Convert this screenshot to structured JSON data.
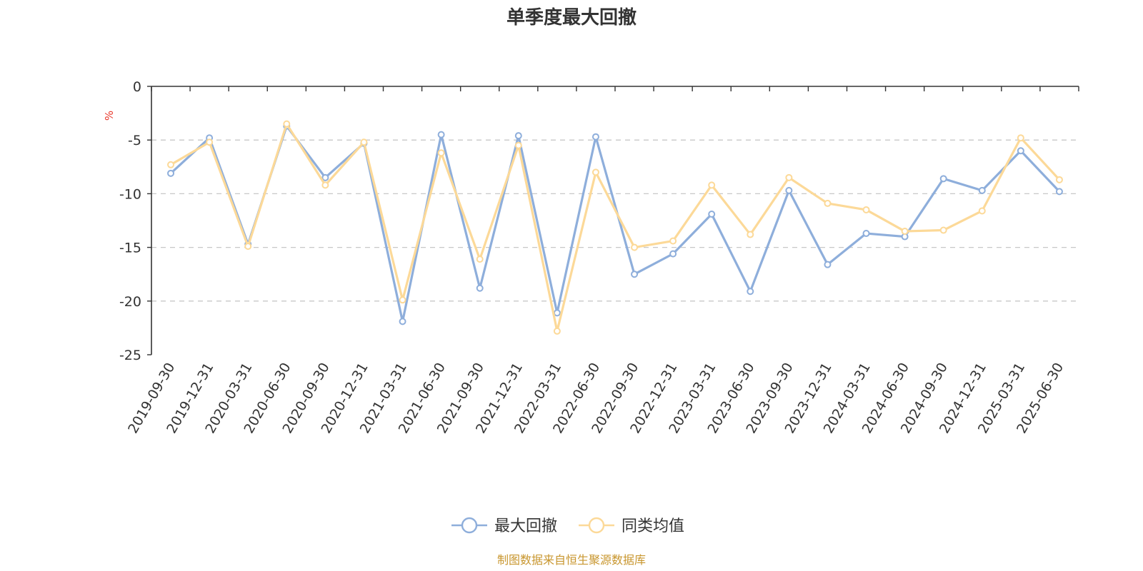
{
  "chart_data": {
    "type": "line",
    "title": "单季度最大回撤",
    "ylabel": "%",
    "ylim": [
      -25,
      0
    ],
    "yticks": [
      0,
      -5,
      -10,
      -15,
      -20,
      -25
    ],
    "grid": true,
    "legend_position": "bottom",
    "source": "制图数据来自恒生聚源数据库",
    "categories": [
      "2019-09-30",
      "2019-12-31",
      "2020-03-31",
      "2020-06-30",
      "2020-09-30",
      "2020-12-31",
      "2021-03-31",
      "2021-06-30",
      "2021-09-30",
      "2021-12-31",
      "2022-03-31",
      "2022-06-30",
      "2022-09-30",
      "2022-12-31",
      "2023-03-31",
      "2023-06-30",
      "2023-09-30",
      "2023-12-31",
      "2024-03-31",
      "2024-06-30",
      "2024-09-30",
      "2024-12-31",
      "2025-03-31",
      "2025-06-30"
    ],
    "series": [
      {
        "name": "最大回撤",
        "color": "#8eaedb",
        "values": [
          -8.1,
          -4.8,
          -14.7,
          -3.7,
          -8.5,
          -5.3,
          -21.9,
          -4.5,
          -18.8,
          -4.6,
          -21.1,
          -4.7,
          -17.5,
          -15.6,
          -11.9,
          -19.1,
          -9.7,
          -16.6,
          -13.7,
          -14.0,
          -8.6,
          -9.7,
          -6.0,
          -9.8
        ]
      },
      {
        "name": "同类均值",
        "color": "#fcd998",
        "values": [
          -7.3,
          -5.2,
          -14.9,
          -3.5,
          -9.2,
          -5.2,
          -19.9,
          -6.2,
          -16.1,
          -5.5,
          -22.8,
          -8.0,
          -15.0,
          -14.4,
          -9.2,
          -13.8,
          -8.5,
          -10.9,
          -11.5,
          -13.5,
          -13.4,
          -11.6,
          -4.8,
          -8.7
        ]
      }
    ]
  }
}
